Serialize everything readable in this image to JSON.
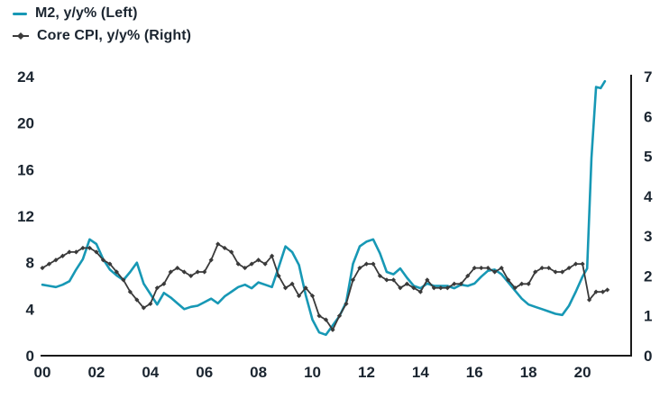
{
  "legend": [
    {
      "label": "M2, y/y% (Left)",
      "color": "#1798b5",
      "marker": "line"
    },
    {
      "label": "Core CPI, y/y% (Right)",
      "color": "#3a3a3a",
      "marker": "line-diamond"
    }
  ],
  "axes": {
    "text_color": "#1b2530",
    "axis_line_color": "#1a1a1a"
  },
  "chart_data": {
    "type": "line",
    "title": "",
    "xlabel": "",
    "ylabel_left": "M2, y/y%",
    "ylabel_right": "Core CPI, y/y%",
    "grid": false,
    "legend_position": "top-left",
    "x_domain": [
      2000,
      2021.8
    ],
    "x_ticks": {
      "values": [
        2000,
        2002,
        2004,
        2006,
        2008,
        2010,
        2012,
        2014,
        2016,
        2018,
        2020
      ],
      "labels": [
        "00",
        "02",
        "04",
        "06",
        "08",
        "10",
        "12",
        "14",
        "16",
        "18",
        "20"
      ]
    },
    "left_axis": {
      "range": [
        0,
        24
      ],
      "ticks": [
        0,
        4,
        8,
        12,
        16,
        20,
        24
      ]
    },
    "right_axis": {
      "range": [
        0,
        7
      ],
      "ticks": [
        0,
        1,
        2,
        3,
        4,
        5,
        6,
        7
      ]
    },
    "series": [
      {
        "name": "M2, y/y% (Left)",
        "axis": "left",
        "color": "#1798b5",
        "line_width": 2.6,
        "marker": "none",
        "x": [
          2000,
          2000.25,
          2000.5,
          2000.75,
          2001,
          2001.25,
          2001.5,
          2001.75,
          2002,
          2002.25,
          2002.5,
          2002.75,
          2003,
          2003.25,
          2003.5,
          2003.75,
          2004,
          2004.25,
          2004.5,
          2004.75,
          2005,
          2005.25,
          2005.5,
          2005.75,
          2006,
          2006.25,
          2006.5,
          2006.75,
          2007,
          2007.25,
          2007.5,
          2007.75,
          2008,
          2008.25,
          2008.5,
          2008.75,
          2009,
          2009.25,
          2009.5,
          2009.75,
          2010,
          2010.25,
          2010.5,
          2010.75,
          2011,
          2011.25,
          2011.5,
          2011.75,
          2012,
          2012.25,
          2012.5,
          2012.75,
          2013,
          2013.25,
          2013.5,
          2013.75,
          2014,
          2014.25,
          2014.5,
          2014.75,
          2015,
          2015.25,
          2015.5,
          2015.75,
          2016,
          2016.25,
          2016.5,
          2016.75,
          2017,
          2017.25,
          2017.5,
          2017.75,
          2018,
          2018.25,
          2018.5,
          2018.75,
          2019,
          2019.25,
          2019.5,
          2019.75,
          2020,
          2020.17,
          2020.33,
          2020.5,
          2020.67,
          2020.83
        ],
        "values": [
          6.1,
          6.0,
          5.9,
          6.1,
          6.4,
          7.4,
          8.3,
          10.0,
          9.6,
          8.3,
          7.4,
          6.9,
          6.5,
          7.2,
          8.0,
          6.2,
          5.3,
          4.4,
          5.4,
          5.0,
          4.5,
          4.0,
          4.2,
          4.3,
          4.6,
          4.9,
          4.5,
          5.1,
          5.5,
          5.9,
          6.1,
          5.8,
          6.3,
          6.1,
          5.9,
          7.6,
          9.4,
          8.9,
          7.8,
          5.2,
          3.1,
          2.0,
          1.8,
          2.6,
          3.4,
          4.6,
          7.9,
          9.4,
          9.8,
          10.0,
          8.8,
          7.2,
          7.0,
          7.5,
          6.7,
          6.0,
          5.8,
          6.2,
          6.0,
          6.0,
          6.0,
          5.8,
          6.1,
          6.0,
          6.2,
          6.8,
          7.3,
          7.4,
          7.0,
          6.3,
          5.6,
          4.9,
          4.4,
          4.2,
          4.0,
          3.8,
          3.6,
          3.5,
          4.3,
          5.5,
          6.8,
          7.5,
          17.0,
          23.1,
          23.0,
          23.6
        ]
      },
      {
        "name": "Core CPI, y/y% (Right)",
        "axis": "right",
        "color": "#3a3a3a",
        "line_width": 1.8,
        "marker": "diamond",
        "x": [
          2000,
          2000.25,
          2000.5,
          2000.75,
          2001,
          2001.25,
          2001.5,
          2001.75,
          2002,
          2002.25,
          2002.5,
          2002.75,
          2003,
          2003.25,
          2003.5,
          2003.75,
          2004,
          2004.25,
          2004.5,
          2004.75,
          2005,
          2005.25,
          2005.5,
          2005.75,
          2006,
          2006.25,
          2006.5,
          2006.75,
          2007,
          2007.25,
          2007.5,
          2007.75,
          2008,
          2008.25,
          2008.5,
          2008.75,
          2009,
          2009.25,
          2009.5,
          2009.75,
          2010,
          2010.25,
          2010.5,
          2010.75,
          2011,
          2011.25,
          2011.5,
          2011.75,
          2012,
          2012.25,
          2012.5,
          2012.75,
          2013,
          2013.25,
          2013.5,
          2013.75,
          2014,
          2014.25,
          2014.5,
          2014.75,
          2015,
          2015.25,
          2015.5,
          2015.75,
          2016,
          2016.25,
          2016.5,
          2016.75,
          2017,
          2017.25,
          2017.5,
          2017.75,
          2018,
          2018.25,
          2018.5,
          2018.75,
          2019,
          2019.25,
          2019.5,
          2019.75,
          2020,
          2020.25,
          2020.5,
          2020.75,
          2020.92
        ],
        "values": [
          2.2,
          2.3,
          2.4,
          2.5,
          2.6,
          2.6,
          2.7,
          2.7,
          2.6,
          2.4,
          2.3,
          2.1,
          1.9,
          1.6,
          1.4,
          1.2,
          1.3,
          1.7,
          1.8,
          2.1,
          2.2,
          2.1,
          2.0,
          2.1,
          2.1,
          2.4,
          2.8,
          2.7,
          2.6,
          2.3,
          2.2,
          2.3,
          2.4,
          2.3,
          2.5,
          2.0,
          1.7,
          1.8,
          1.5,
          1.7,
          1.5,
          1.0,
          0.9,
          0.65,
          1.0,
          1.3,
          1.9,
          2.2,
          2.3,
          2.3,
          2.0,
          1.9,
          1.9,
          1.7,
          1.8,
          1.7,
          1.6,
          1.9,
          1.7,
          1.7,
          1.7,
          1.8,
          1.8,
          2.0,
          2.2,
          2.2,
          2.2,
          2.1,
          2.2,
          1.9,
          1.7,
          1.8,
          1.8,
          2.1,
          2.2,
          2.2,
          2.1,
          2.1,
          2.2,
          2.3,
          2.3,
          1.4,
          1.6,
          1.6,
          1.65
        ]
      }
    ]
  }
}
